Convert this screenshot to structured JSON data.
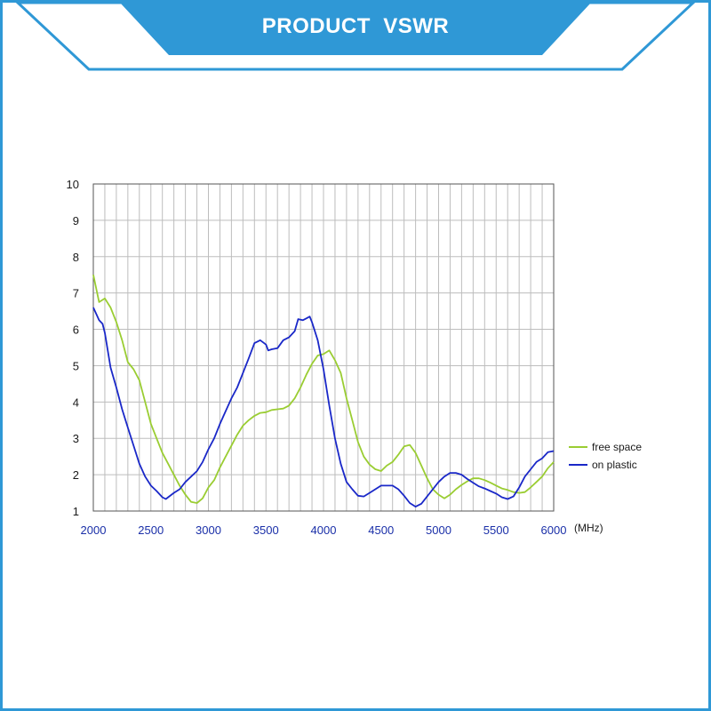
{
  "header": {
    "title": "PRODUCT  VSWR"
  },
  "colors": {
    "accent": "#2f98d6",
    "free_space": "#9acd32",
    "on_plastic": "#1a28c8"
  },
  "chart_data": {
    "type": "line",
    "title": "",
    "xlabel": "",
    "x_unit": "(MHz)",
    "ylabel": "",
    "xlim": [
      2000,
      6000
    ],
    "ylim": [
      1,
      10
    ],
    "x_ticks": [
      2000,
      2500,
      3000,
      3500,
      4000,
      4500,
      5000,
      5500,
      6000
    ],
    "y_ticks": [
      1,
      2,
      3,
      4,
      5,
      6,
      7,
      8,
      9,
      10
    ],
    "grid": true,
    "legend_position": "right",
    "series": [
      {
        "name": "free space",
        "color": "#9acd32",
        "points": [
          [
            2000,
            7.5
          ],
          [
            2050,
            6.75
          ],
          [
            2100,
            6.85
          ],
          [
            2150,
            6.6
          ],
          [
            2200,
            6.2
          ],
          [
            2250,
            5.7
          ],
          [
            2300,
            5.1
          ],
          [
            2350,
            4.9
          ],
          [
            2400,
            4.6
          ],
          [
            2450,
            4.0
          ],
          [
            2500,
            3.4
          ],
          [
            2550,
            3.0
          ],
          [
            2600,
            2.6
          ],
          [
            2650,
            2.3
          ],
          [
            2700,
            2.0
          ],
          [
            2750,
            1.7
          ],
          [
            2800,
            1.45
          ],
          [
            2850,
            1.25
          ],
          [
            2900,
            1.22
          ],
          [
            2950,
            1.35
          ],
          [
            3000,
            1.65
          ],
          [
            3050,
            1.85
          ],
          [
            3100,
            2.2
          ],
          [
            3150,
            2.5
          ],
          [
            3200,
            2.8
          ],
          [
            3250,
            3.1
          ],
          [
            3300,
            3.35
          ],
          [
            3350,
            3.5
          ],
          [
            3400,
            3.62
          ],
          [
            3450,
            3.7
          ],
          [
            3500,
            3.72
          ],
          [
            3550,
            3.78
          ],
          [
            3600,
            3.8
          ],
          [
            3650,
            3.82
          ],
          [
            3700,
            3.9
          ],
          [
            3750,
            4.1
          ],
          [
            3800,
            4.4
          ],
          [
            3850,
            4.75
          ],
          [
            3900,
            5.05
          ],
          [
            3950,
            5.28
          ],
          [
            4000,
            5.32
          ],
          [
            4050,
            5.42
          ],
          [
            4100,
            5.15
          ],
          [
            4150,
            4.8
          ],
          [
            4200,
            4.1
          ],
          [
            4250,
            3.5
          ],
          [
            4300,
            2.9
          ],
          [
            4350,
            2.5
          ],
          [
            4400,
            2.28
          ],
          [
            4450,
            2.15
          ],
          [
            4500,
            2.1
          ],
          [
            4550,
            2.25
          ],
          [
            4600,
            2.35
          ],
          [
            4650,
            2.55
          ],
          [
            4700,
            2.78
          ],
          [
            4750,
            2.82
          ],
          [
            4800,
            2.6
          ],
          [
            4850,
            2.25
          ],
          [
            4900,
            1.9
          ],
          [
            4950,
            1.6
          ],
          [
            5000,
            1.45
          ],
          [
            5050,
            1.35
          ],
          [
            5100,
            1.45
          ],
          [
            5150,
            1.6
          ],
          [
            5200,
            1.72
          ],
          [
            5250,
            1.82
          ],
          [
            5300,
            1.9
          ],
          [
            5350,
            1.9
          ],
          [
            5400,
            1.85
          ],
          [
            5450,
            1.78
          ],
          [
            5500,
            1.7
          ],
          [
            5550,
            1.62
          ],
          [
            5600,
            1.58
          ],
          [
            5650,
            1.52
          ],
          [
            5700,
            1.5
          ],
          [
            5750,
            1.52
          ],
          [
            5800,
            1.65
          ],
          [
            5850,
            1.8
          ],
          [
            5900,
            1.95
          ],
          [
            5950,
            2.18
          ],
          [
            6000,
            2.35
          ]
        ]
      },
      {
        "name": "on plastic",
        "color": "#1a28c8",
        "points": [
          [
            2000,
            6.6
          ],
          [
            2050,
            6.25
          ],
          [
            2080,
            6.15
          ],
          [
            2100,
            5.9
          ],
          [
            2150,
            4.95
          ],
          [
            2200,
            4.4
          ],
          [
            2250,
            3.8
          ],
          [
            2300,
            3.3
          ],
          [
            2350,
            2.8
          ],
          [
            2400,
            2.3
          ],
          [
            2450,
            1.95
          ],
          [
            2500,
            1.7
          ],
          [
            2550,
            1.55
          ],
          [
            2600,
            1.38
          ],
          [
            2630,
            1.33
          ],
          [
            2650,
            1.38
          ],
          [
            2700,
            1.5
          ],
          [
            2750,
            1.6
          ],
          [
            2800,
            1.8
          ],
          [
            2850,
            1.95
          ],
          [
            2900,
            2.1
          ],
          [
            2950,
            2.35
          ],
          [
            3000,
            2.7
          ],
          [
            3050,
            3.0
          ],
          [
            3100,
            3.4
          ],
          [
            3150,
            3.75
          ],
          [
            3200,
            4.1
          ],
          [
            3250,
            4.4
          ],
          [
            3300,
            4.8
          ],
          [
            3350,
            5.2
          ],
          [
            3400,
            5.62
          ],
          [
            3450,
            5.7
          ],
          [
            3500,
            5.58
          ],
          [
            3520,
            5.42
          ],
          [
            3550,
            5.45
          ],
          [
            3600,
            5.48
          ],
          [
            3650,
            5.7
          ],
          [
            3700,
            5.78
          ],
          [
            3750,
            5.95
          ],
          [
            3780,
            6.28
          ],
          [
            3820,
            6.25
          ],
          [
            3850,
            6.3
          ],
          [
            3880,
            6.35
          ],
          [
            3900,
            6.2
          ],
          [
            3950,
            5.7
          ],
          [
            4000,
            4.9
          ],
          [
            4050,
            3.9
          ],
          [
            4100,
            3.0
          ],
          [
            4150,
            2.3
          ],
          [
            4200,
            1.8
          ],
          [
            4250,
            1.6
          ],
          [
            4300,
            1.42
          ],
          [
            4350,
            1.4
          ],
          [
            4400,
            1.5
          ],
          [
            4450,
            1.6
          ],
          [
            4500,
            1.7
          ],
          [
            4550,
            1.7
          ],
          [
            4600,
            1.7
          ],
          [
            4650,
            1.6
          ],
          [
            4700,
            1.42
          ],
          [
            4750,
            1.22
          ],
          [
            4800,
            1.12
          ],
          [
            4850,
            1.2
          ],
          [
            4900,
            1.4
          ],
          [
            4950,
            1.6
          ],
          [
            5000,
            1.8
          ],
          [
            5050,
            1.95
          ],
          [
            5100,
            2.05
          ],
          [
            5150,
            2.05
          ],
          [
            5200,
            2.0
          ],
          [
            5250,
            1.88
          ],
          [
            5300,
            1.78
          ],
          [
            5350,
            1.68
          ],
          [
            5400,
            1.62
          ],
          [
            5450,
            1.55
          ],
          [
            5500,
            1.48
          ],
          [
            5550,
            1.38
          ],
          [
            5600,
            1.33
          ],
          [
            5650,
            1.4
          ],
          [
            5700,
            1.65
          ],
          [
            5750,
            1.95
          ],
          [
            5800,
            2.15
          ],
          [
            5850,
            2.35
          ],
          [
            5900,
            2.45
          ],
          [
            5950,
            2.62
          ],
          [
            6000,
            2.65
          ]
        ]
      }
    ]
  }
}
